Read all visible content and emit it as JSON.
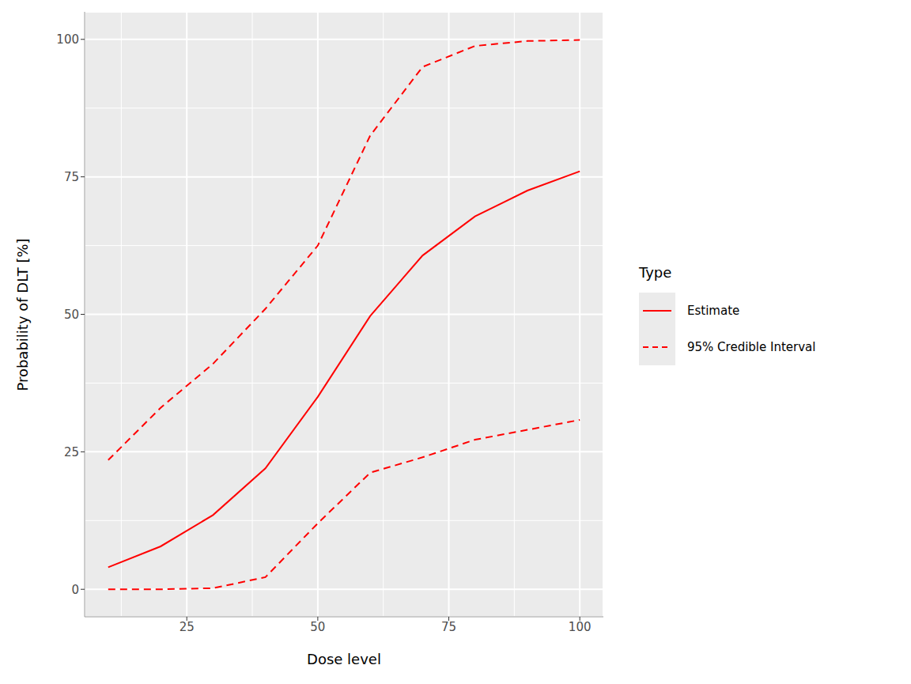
{
  "chart_data": {
    "type": "line",
    "x_label": "Dose level",
    "y_label": "Probability of DLT [%]",
    "x": [
      10,
      20,
      30,
      40,
      50,
      60,
      70,
      80,
      90,
      100
    ],
    "series": [
      {
        "name": "Estimate",
        "color": "#ff0000",
        "line_style": "solid",
        "values": [
          4,
          7.8,
          13.5,
          22,
          35,
          49.7,
          60.7,
          67.8,
          72.5,
          76
        ]
      },
      {
        "name": "95% Credible Interval",
        "color": "#ff0000",
        "line_style": "dashed",
        "lower": [
          0,
          0,
          0.2,
          2.2,
          12,
          21.2,
          24,
          27.2,
          29,
          30.8
        ],
        "upper": [
          23.5,
          33,
          41,
          51,
          62.5,
          82.5,
          95,
          98.8,
          99.7,
          99.9
        ]
      }
    ],
    "xlim": [
      5.5,
      104.5
    ],
    "ylim": [
      -5,
      105
    ],
    "xticks": [
      25,
      50,
      75,
      100
    ],
    "yticks": [
      0,
      25,
      50,
      75,
      100
    ],
    "grid": true,
    "legend": "right",
    "legend_title": "Type"
  }
}
